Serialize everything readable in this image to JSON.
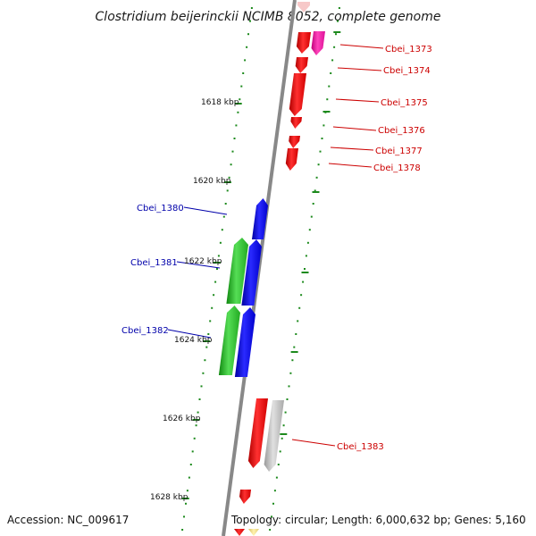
{
  "title": "Clostridium beijerinckii NCIMB 8052, complete genome",
  "footer": {
    "accession": "Accession: NC_009617",
    "summary": "Topology: circular; Length: 6,000,632 bp; Genes: 5,160"
  },
  "colors": {
    "backbone": "#888888",
    "tick": "#1d8a1d",
    "forward_label": "#cc0000",
    "reverse_label": "#0000aa",
    "red_gene": "#ee0000",
    "blue_gene": "#0000ee",
    "green_gene": "#22bb22",
    "magenta_gene": "#ee1199",
    "gray_gene": "#b8b8b8",
    "yellow_gene": "#f0e080"
  },
  "kbp_labels": [
    "1618 kbp",
    "1620 kbp",
    "1622 kbp",
    "1624 kbp",
    "1626 kbp",
    "1628 kbp"
  ],
  "forward_labels": [
    "Cbei_1373",
    "Cbei_1374",
    "Cbei_1375",
    "Cbei_1376",
    "Cbei_1377",
    "Cbei_1378",
    "Cbei_1383"
  ],
  "reverse_labels": [
    "Cbei_1380",
    "Cbei_1381",
    "Cbei_1382"
  ]
}
